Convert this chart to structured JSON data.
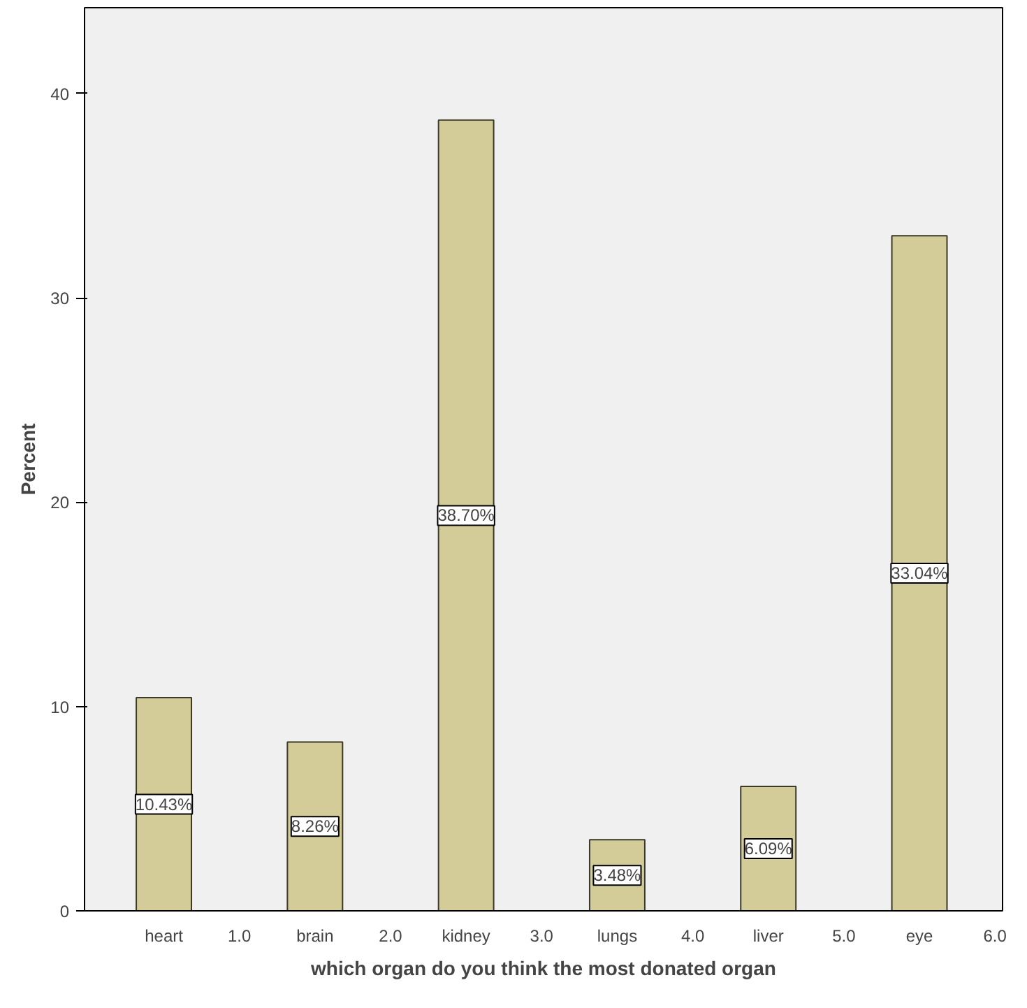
{
  "chart_data": {
    "type": "bar",
    "xlabel": "which organ do you think the most donated organ",
    "ylabel": "Percent",
    "categories": [
      "heart",
      "1.0",
      "brain",
      "2.0",
      "kidney",
      "3.0",
      "lungs",
      "4.0",
      "liver",
      "5.0",
      "eye",
      "6.0"
    ],
    "values": [
      10.43,
      0,
      8.26,
      0,
      38.7,
      0,
      3.48,
      0,
      6.09,
      0,
      33.04,
      0
    ],
    "value_labels": [
      "10.43%",
      null,
      "8.26%",
      null,
      "38.70%",
      null,
      "3.48%",
      null,
      "6.09%",
      null,
      "33.04%",
      null
    ],
    "color": "#d3cc98",
    "ylim": [
      0,
      44.2
    ],
    "yticks": [
      0,
      10,
      20,
      30,
      40
    ],
    "grid": false
  }
}
